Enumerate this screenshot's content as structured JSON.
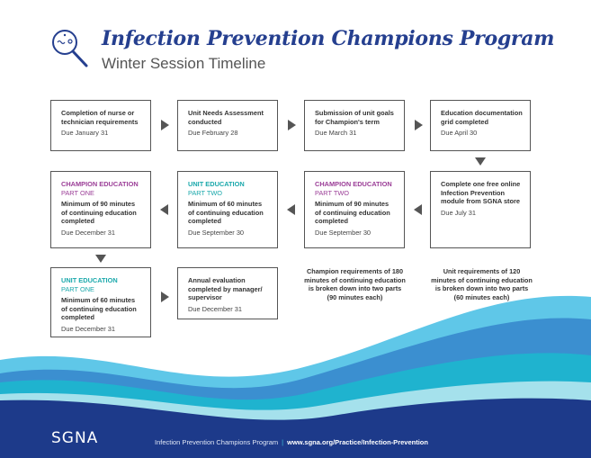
{
  "header": {
    "title": "Infection Prevention Champions Program",
    "subtitle": "Winter Session Timeline",
    "icon": "magnifier-germ-icon"
  },
  "steps": [
    {
      "text": "Completion of nurse or technician requirements",
      "due": "Due January 31"
    },
    {
      "text": "Unit Needs Assessment conducted",
      "due": "Due February 28"
    },
    {
      "text": "Submission of unit goals for Champion's term",
      "due": "Due March 31"
    },
    {
      "text": "Education documentation grid completed",
      "due": "Due April 30"
    },
    {
      "text": "Complete one free online Infection Prevention module from SGNA store",
      "due": "Due July 31"
    },
    {
      "heading": "CHAMPION EDUCATION",
      "part": "PART TWO",
      "text": "Minimum of 90 minutes of continuing education completed",
      "due": "Due September 30"
    },
    {
      "heading": "UNIT EDUCATION",
      "part": "PART TWO",
      "text": "Minimum of 60 minutes of continuing education completed",
      "due": "Due September 30"
    },
    {
      "heading": "CHAMPION EDUCATION",
      "part": "PART ONE",
      "text": "Minimum of 90 minutes of continuing education completed",
      "due": "Due December 31"
    },
    {
      "heading": "UNIT EDUCATION",
      "part": "PART ONE",
      "text": "Minimum of 60 minutes of continuing education completed",
      "due": "Due December 31"
    },
    {
      "text": "Annual evaluation completed by manager/ supervisor",
      "due": "Due December 31"
    }
  ],
  "notes": {
    "champion": "Champion requirements of 180 minutes of continuing education is broken down into two parts (90 minutes each)",
    "unit": "Unit requirements of 120 minutes of continuing education is broken down into two parts (60 minutes each)"
  },
  "footer": {
    "logo": "SGNA",
    "program": "Infection Prevention Champions Program",
    "url": "www.sgna.org/Practice/Infection-Prevention"
  },
  "colors": {
    "title": "#253f8f",
    "purple": "#9b3e97",
    "teal": "#1aa8ab",
    "footer": "#1d3a8a"
  }
}
